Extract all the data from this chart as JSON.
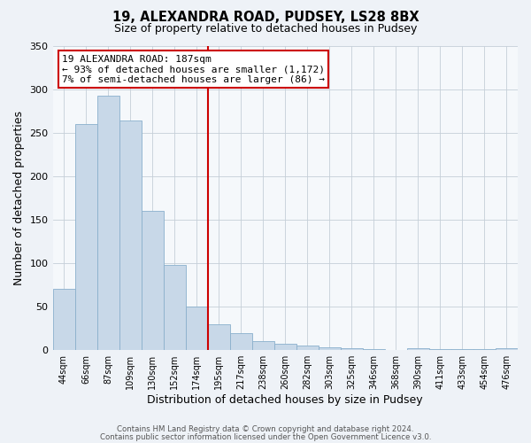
{
  "title": "19, ALEXANDRA ROAD, PUDSEY, LS28 8BX",
  "subtitle": "Size of property relative to detached houses in Pudsey",
  "xlabel": "Distribution of detached houses by size in Pudsey",
  "ylabel": "Number of detached properties",
  "bin_labels": [
    "44sqm",
    "66sqm",
    "87sqm",
    "109sqm",
    "130sqm",
    "152sqm",
    "174sqm",
    "195sqm",
    "217sqm",
    "238sqm",
    "260sqm",
    "282sqm",
    "303sqm",
    "325sqm",
    "346sqm",
    "368sqm",
    "390sqm",
    "411sqm",
    "433sqm",
    "454sqm",
    "476sqm"
  ],
  "bar_heights": [
    70,
    260,
    292,
    264,
    160,
    98,
    50,
    29,
    19,
    10,
    7,
    5,
    3,
    2,
    1,
    0,
    2,
    1,
    1,
    1,
    2
  ],
  "bar_color": "#c8d8e8",
  "bar_edge_color": "#8ab0cc",
  "vline_x": 6.5,
  "vline_color": "#cc0000",
  "ylim": [
    0,
    350
  ],
  "yticks": [
    0,
    50,
    100,
    150,
    200,
    250,
    300,
    350
  ],
  "annotation_title": "19 ALEXANDRA ROAD: 187sqm",
  "annotation_line1": "← 93% of detached houses are smaller (1,172)",
  "annotation_line2": "7% of semi-detached houses are larger (86) →",
  "annotation_box_color": "#ffffff",
  "annotation_box_edge": "#cc0000",
  "footer_line1": "Contains HM Land Registry data © Crown copyright and database right 2024.",
  "footer_line2": "Contains public sector information licensed under the Open Government Licence v3.0.",
  "bg_color": "#eef2f7",
  "plot_bg_color": "#f5f8fb",
  "grid_color": "#c5cfd8"
}
